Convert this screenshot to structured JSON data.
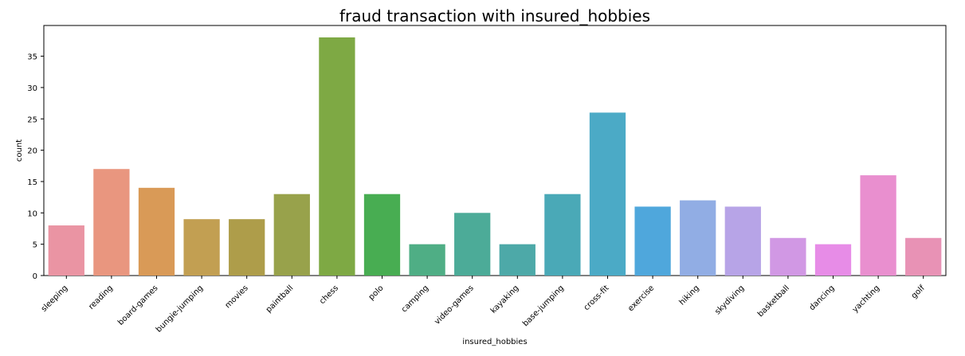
{
  "chart_data": {
    "type": "bar",
    "title": "fraud transaction with insured_hobbies",
    "xlabel": "insured_hobbies",
    "ylabel": "count",
    "ylim": [
      0,
      39.9
    ],
    "yticks": [
      0,
      5,
      10,
      15,
      20,
      25,
      30,
      35
    ],
    "categories": [
      "sleeping",
      "reading",
      "board-games",
      "bungie-jumping",
      "movies",
      "paintball",
      "chess",
      "polo",
      "camping",
      "video-games",
      "kayaking",
      "base-jumping",
      "cross-fit",
      "exercise",
      "hiking",
      "skydiving",
      "basketball",
      "dancing",
      "yachting",
      "golf"
    ],
    "values": [
      8,
      17,
      14,
      9,
      9,
      13,
      38,
      13,
      5,
      10,
      5,
      13,
      26,
      11,
      12,
      11,
      6,
      5,
      16,
      6
    ],
    "colors": [
      "#ea94a3",
      "#e9967f",
      "#d99a57",
      "#c29f52",
      "#ae9d4a",
      "#98a24b",
      "#7ea944",
      "#48ad52",
      "#4fae85",
      "#4cab98",
      "#4da9a8",
      "#4aa9b7",
      "#4baac6",
      "#4fa7dc",
      "#91ade4",
      "#b7a4e7",
      "#d198e4",
      "#e78ce7",
      "#e98fcf",
      "#e892b5"
    ],
    "grid": false,
    "legend": "none"
  }
}
